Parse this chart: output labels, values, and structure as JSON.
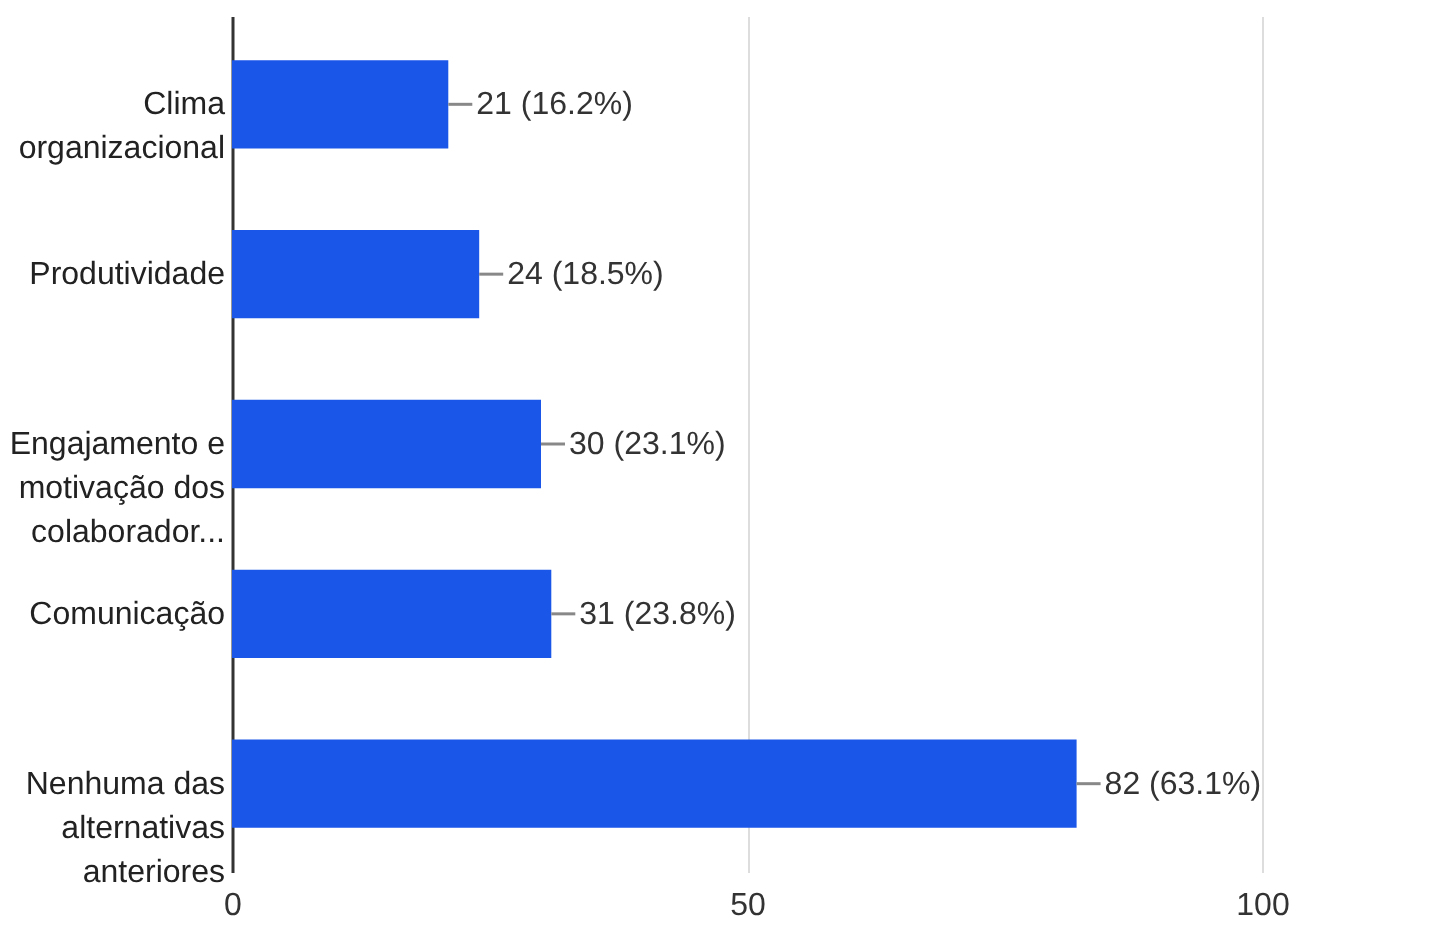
{
  "chart_data": {
    "type": "bar",
    "orientation": "horizontal",
    "categories": [
      "Clima\norganizacional",
      "Produtividade",
      "Engajamento e\nmotivação dos\ncolaborador...",
      "Comunicação",
      "Nenhuma das\nalternativas\nanteriores"
    ],
    "values": [
      21,
      24,
      30,
      31,
      82
    ],
    "value_labels": [
      "21 (16.2%)",
      "24 (18.5%)",
      "30 (23.1%)",
      "31 (23.8%)",
      "82 (63.1%)"
    ],
    "color": "#1a56e8",
    "xlim": [
      0,
      100
    ],
    "xticks": [
      0,
      50,
      100
    ],
    "grid": "x"
  }
}
